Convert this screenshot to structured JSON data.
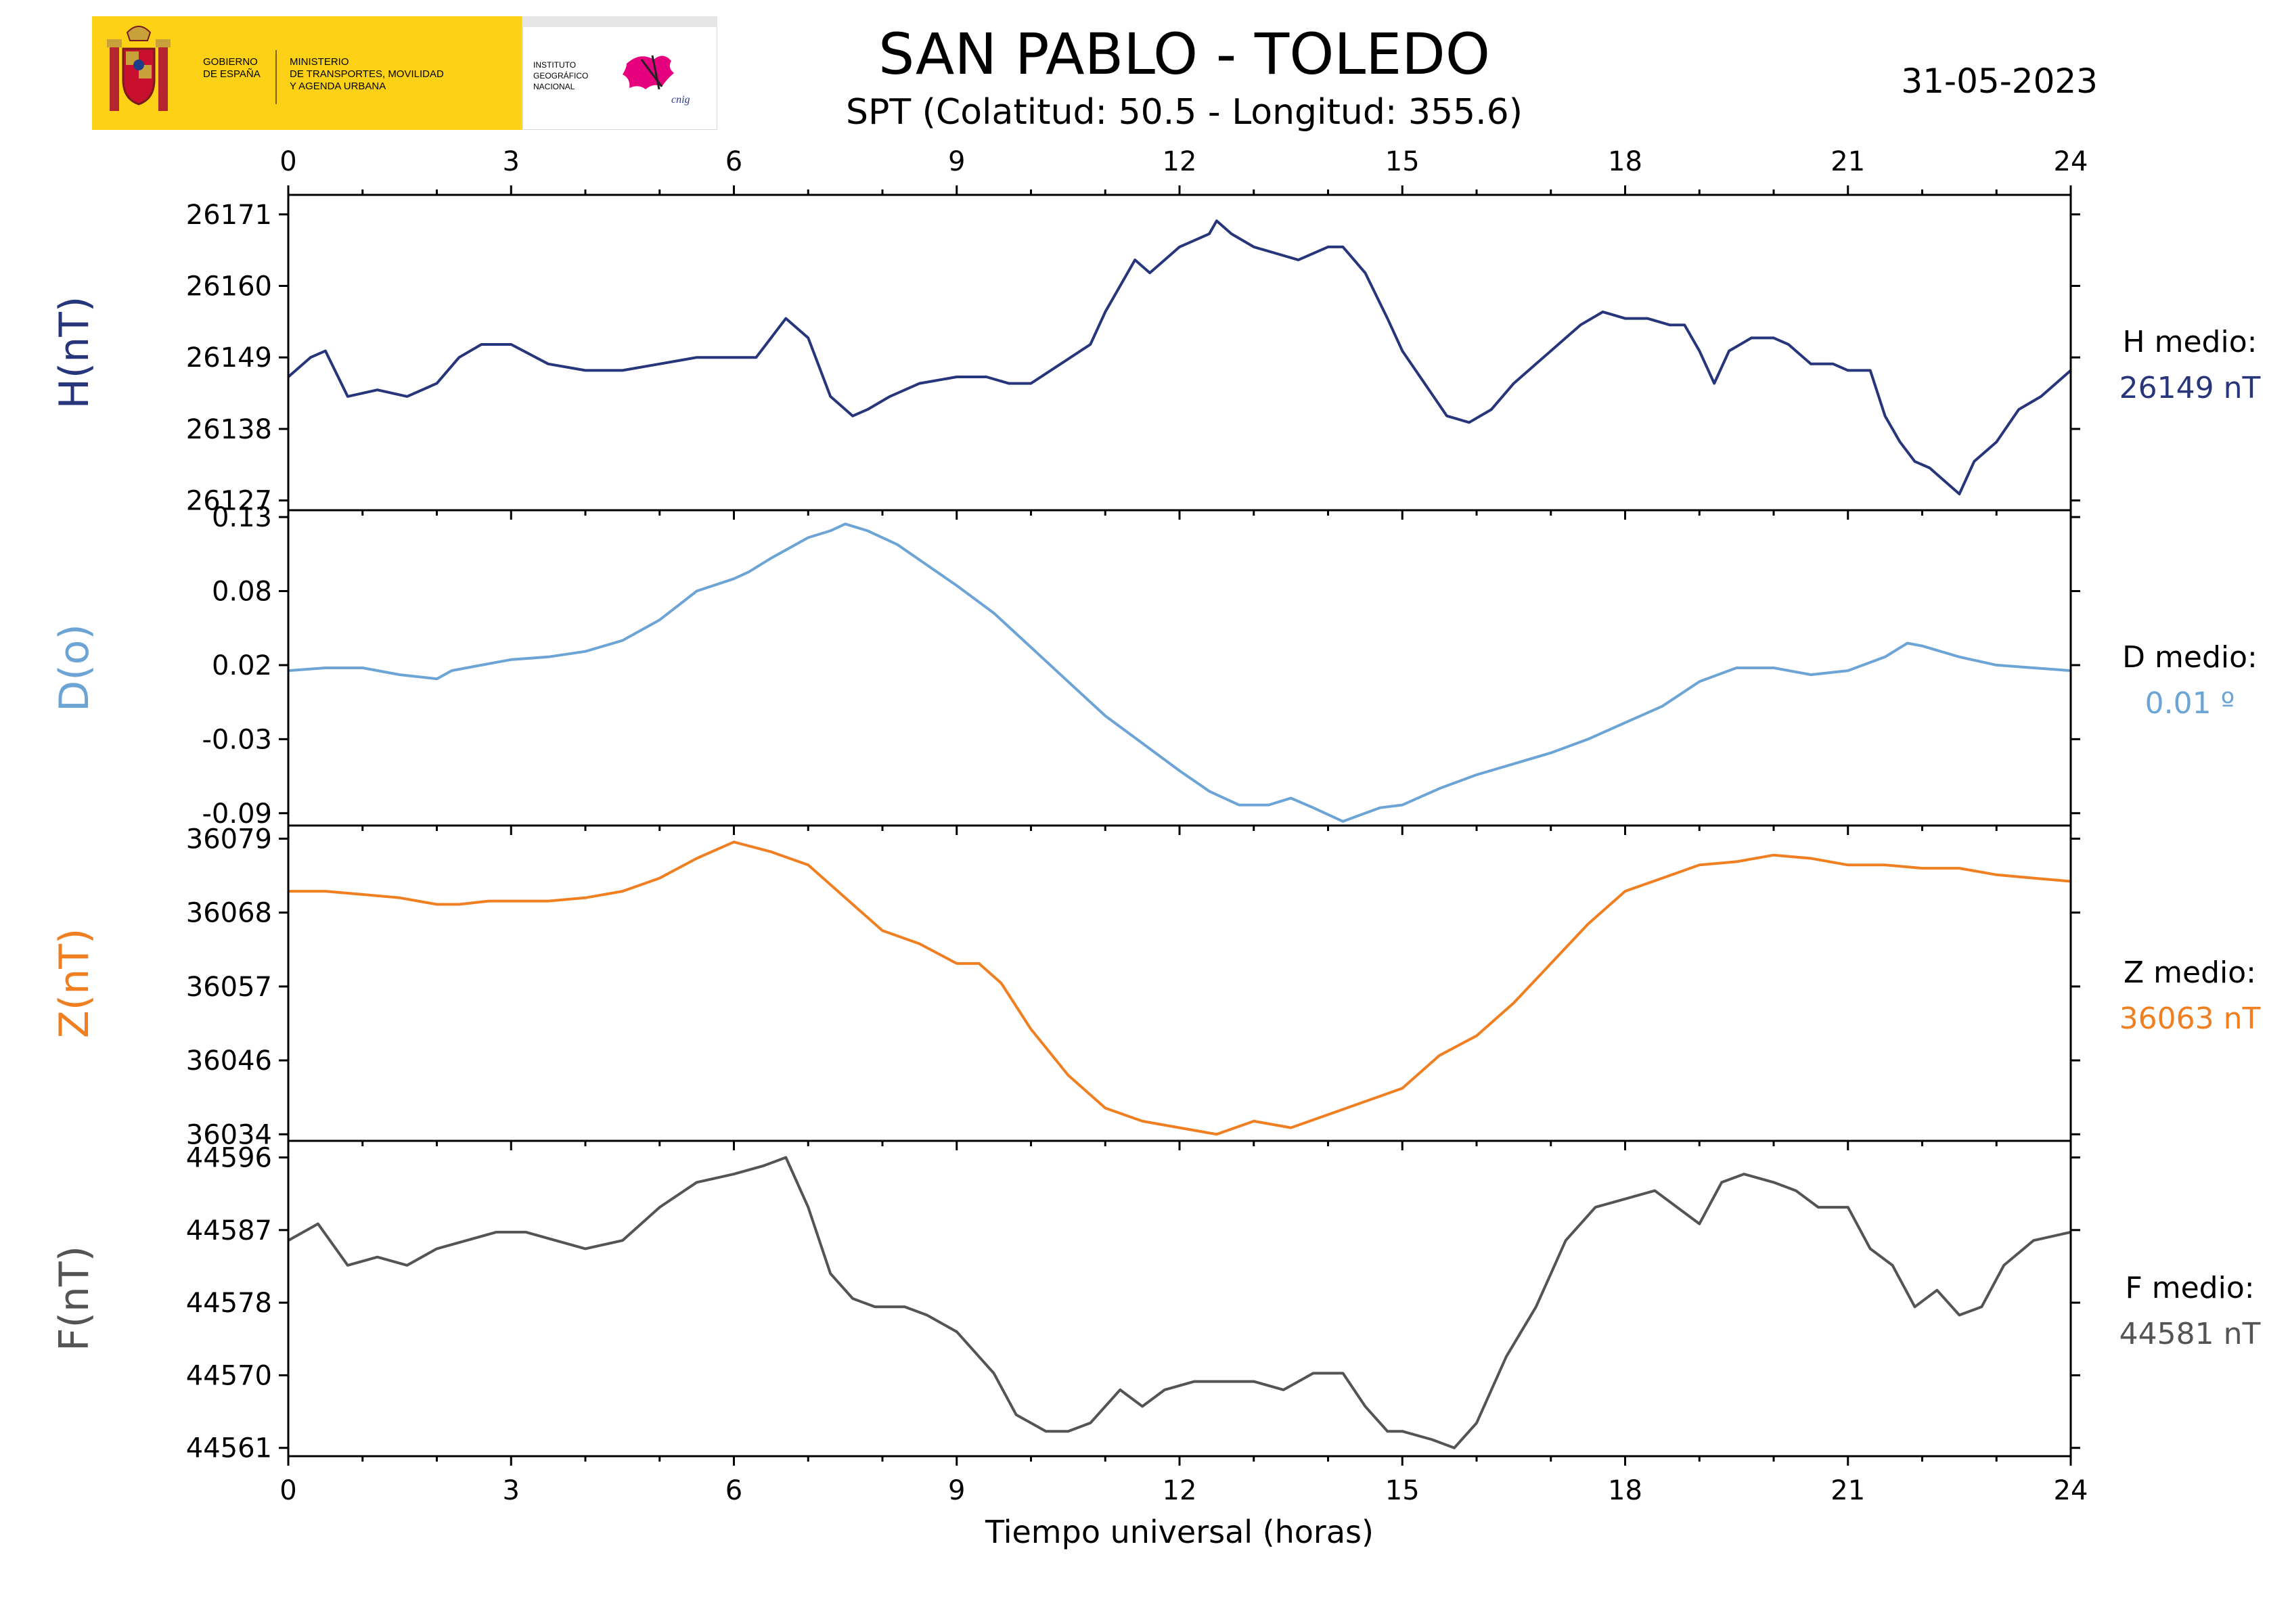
{
  "header": {
    "title": "SAN PABLO - TOLEDO",
    "subtitle": "SPT (Colatitud: 50.5 - Longitud: 355.6)",
    "date": "31-05-2023",
    "logo": {
      "gov_line1": "GOBIERNO",
      "gov_line2": "DE ESPAÑA",
      "min_line1": "MINISTERIO",
      "min_line2": "DE TRANSPORTES, MOVILIDAD",
      "min_line3": "Y AGENDA URBANA",
      "ign_line1": "INSTITUTO",
      "ign_line2": "GEOGRÁFICO",
      "ign_line3": "NACIONAL",
      "cnig": "cnig",
      "gov_color": "#fcd116",
      "brand_pink": "#e5007e"
    }
  },
  "chart_data": {
    "type": "line",
    "xlabel": "Tiempo universal (horas)",
    "xlim": [
      0,
      24
    ],
    "xticks": [
      0,
      3,
      6,
      9,
      12,
      15,
      18,
      21,
      24
    ],
    "grid": false,
    "panels": [
      {
        "id": "H",
        "ylabel": "H(nT)",
        "color": "#27357a",
        "ylim": [
          26125.5,
          26174
        ],
        "yticks": [
          26127,
          26138,
          26149,
          26160,
          26171
        ],
        "ytick_labels": [
          "26127",
          "26138",
          "26149",
          "26160",
          "26171"
        ],
        "medio_label": "H medio:",
        "medio_value": "26149 nT",
        "x": [
          0,
          0.3,
          0.5,
          0.8,
          1.2,
          1.6,
          2.0,
          2.3,
          2.6,
          3.0,
          3.5,
          4.0,
          4.5,
          5.0,
          5.5,
          6.0,
          6.3,
          6.7,
          7.0,
          7.3,
          7.6,
          7.8,
          8.1,
          8.5,
          9.0,
          9.4,
          9.7,
          10.0,
          10.4,
          10.8,
          11.0,
          11.4,
          11.6,
          11.8,
          12.0,
          12.2,
          12.4,
          12.5,
          12.7,
          13.0,
          13.3,
          13.6,
          14.0,
          14.2,
          14.5,
          14.8,
          15.0,
          15.3,
          15.6,
          15.9,
          16.2,
          16.5,
          16.8,
          17.1,
          17.4,
          17.7,
          18.0,
          18.3,
          18.6,
          18.8,
          19.0,
          19.2,
          19.4,
          19.7,
          20.0,
          20.2,
          20.5,
          20.8,
          21.0,
          21.3,
          21.5,
          21.7,
          21.9,
          22.1,
          22.3,
          22.5,
          22.7,
          23.0,
          23.3,
          23.6,
          24.0
        ],
        "y": [
          26146,
          26149,
          26150,
          26143,
          26144,
          26143,
          26145,
          26149,
          26151,
          26151,
          26148,
          26147,
          26147,
          26148,
          26149,
          26149,
          26149,
          26155,
          26152,
          26143,
          26140,
          26141,
          26143,
          26145,
          26146,
          26146,
          26145,
          26145,
          26148,
          26151,
          26156,
          26164,
          26162,
          26164,
          26166,
          26167,
          26168,
          26170,
          26168,
          26166,
          26165,
          26164,
          26166,
          26166,
          26162,
          26155,
          26150,
          26145,
          26140,
          26139,
          26141,
          26145,
          26148,
          26151,
          26154,
          26156,
          26155,
          26155,
          26154,
          26154,
          26150,
          26145,
          26150,
          26152,
          26152,
          26151,
          26148,
          26148,
          26147,
          26147,
          26140,
          26136,
          26133,
          26132,
          26130,
          26128,
          26133,
          26136,
          26141,
          26143,
          26147
        ]
      },
      {
        "id": "D",
        "ylabel": "D(o)",
        "color": "#6ba4d5",
        "ylim": [
          -0.095,
          0.135
        ],
        "yticks": [
          -0.086,
          -0.032,
          0.022,
          0.076,
          0.13
        ],
        "ytick_labels": [
          "-0.09",
          "-0.03",
          "0.02",
          "0.08",
          "0.13"
        ],
        "medio_label": "D medio:",
        "medio_value": "0.01 º",
        "x": [
          0,
          0.5,
          1.0,
          1.5,
          2.0,
          2.2,
          2.6,
          3.0,
          3.5,
          4.0,
          4.5,
          5.0,
          5.5,
          6.0,
          6.2,
          6.5,
          7.0,
          7.3,
          7.5,
          7.8,
          8.2,
          8.6,
          9.0,
          9.5,
          10.0,
          10.5,
          11.0,
          11.5,
          12.0,
          12.4,
          12.8,
          13.2,
          13.5,
          13.8,
          14.2,
          14.4,
          14.7,
          15.0,
          15.5,
          16.0,
          16.5,
          17.0,
          17.5,
          18.0,
          18.5,
          19.0,
          19.5,
          20.0,
          20.5,
          21.0,
          21.5,
          21.8,
          22.0,
          22.5,
          23.0,
          23.5,
          24.0
        ],
        "y": [
          0.018,
          0.02,
          0.02,
          0.015,
          0.012,
          0.018,
          0.022,
          0.026,
          0.028,
          0.032,
          0.04,
          0.055,
          0.076,
          0.085,
          0.09,
          0.1,
          0.115,
          0.12,
          0.125,
          0.12,
          0.11,
          0.095,
          0.08,
          0.06,
          0.035,
          0.01,
          -0.015,
          -0.035,
          -0.055,
          -0.07,
          -0.08,
          -0.08,
          -0.075,
          -0.082,
          -0.092,
          -0.088,
          -0.082,
          -0.08,
          -0.068,
          -0.058,
          -0.05,
          -0.042,
          -0.032,
          -0.02,
          -0.008,
          0.01,
          0.02,
          0.02,
          0.015,
          0.018,
          0.028,
          0.038,
          0.036,
          0.028,
          0.022,
          0.02,
          0.018
        ]
      },
      {
        "id": "Z",
        "ylabel": "Z(nT)",
        "color": "#f07f22",
        "ylim": [
          36033,
          36081
        ],
        "yticks": [
          36034,
          36045.25,
          36056.5,
          36067.75,
          36079
        ],
        "ytick_labels": [
          "36034",
          "36046",
          "36057",
          "36068",
          "36079"
        ],
        "medio_label": "Z medio:",
        "medio_value": "36063 nT",
        "x": [
          0,
          0.5,
          1.0,
          1.5,
          2.0,
          2.3,
          2.7,
          3.0,
          3.5,
          4.0,
          4.5,
          5.0,
          5.5,
          6.0,
          6.5,
          7.0,
          7.5,
          8.0,
          8.5,
          9.0,
          9.3,
          9.6,
          10.0,
          10.5,
          11.0,
          11.5,
          12.0,
          12.5,
          13.0,
          13.5,
          14.0,
          14.5,
          15.0,
          15.5,
          16.0,
          16.5,
          17.0,
          17.5,
          18.0,
          18.5,
          19.0,
          19.5,
          20.0,
          20.5,
          21.0,
          21.5,
          22.0,
          22.5,
          23.0,
          23.5,
          24.0
        ],
        "y": [
          36071,
          36071,
          36070.5,
          36070,
          36069,
          36069,
          36069.5,
          36069.5,
          36069.5,
          36070,
          36071,
          36073,
          36076,
          36078.5,
          36077,
          36075,
          36070,
          36065,
          36063,
          36060,
          36060,
          36057,
          36050,
          36043,
          36038,
          36036,
          36035,
          36034,
          36036,
          36035,
          36037,
          36039,
          36041,
          36046,
          36049,
          36054,
          36060,
          36066,
          36071,
          36073,
          36075,
          36075.5,
          36076.5,
          36076,
          36075,
          36075,
          36074.5,
          36074.5,
          36073.5,
          36073,
          36072.5
        ]
      },
      {
        "id": "F",
        "ylabel": "F(nT)",
        "color": "#545454",
        "ylim": [
          44560,
          44598
        ],
        "yticks": [
          44561,
          44569.75,
          44578.5,
          44587.25,
          44596
        ],
        "ytick_labels": [
          "44561",
          "44570",
          "44578",
          "44587",
          "44596"
        ],
        "medio_label": "F medio:",
        "medio_value": "44581 nT",
        "x": [
          0,
          0.4,
          0.8,
          1.2,
          1.6,
          2.0,
          2.4,
          2.8,
          3.2,
          3.6,
          4.0,
          4.5,
          5.0,
          5.5,
          6.0,
          6.4,
          6.7,
          7.0,
          7.3,
          7.6,
          7.9,
          8.3,
          8.6,
          9.0,
          9.5,
          9.8,
          10.2,
          10.5,
          10.8,
          11.2,
          11.5,
          11.8,
          12.2,
          12.6,
          13.0,
          13.4,
          13.8,
          14.2,
          14.5,
          14.8,
          15.0,
          15.4,
          15.7,
          16.0,
          16.4,
          16.8,
          17.2,
          17.6,
          18.0,
          18.4,
          18.7,
          19.0,
          19.3,
          19.6,
          20.0,
          20.3,
          20.6,
          21.0,
          21.3,
          21.6,
          21.9,
          22.2,
          22.5,
          22.8,
          23.1,
          23.5,
          24.0
        ],
        "y": [
          44586,
          44588,
          44583,
          44584,
          44583,
          44585,
          44586,
          44587,
          44587,
          44586,
          44585,
          44586,
          44590,
          44593,
          44594,
          44595,
          44596,
          44590,
          44582,
          44579,
          44578,
          44578,
          44577,
          44575,
          44570,
          44565,
          44563,
          44563,
          44564,
          44568,
          44566,
          44568,
          44569,
          44569,
          44569,
          44568,
          44570,
          44570,
          44566,
          44563,
          44563,
          44562,
          44561,
          44564,
          44572,
          44578,
          44586,
          44590,
          44591,
          44592,
          44590,
          44588,
          44593,
          44594,
          44593,
          44592,
          44590,
          44590,
          44585,
          44583,
          44578,
          44580,
          44577,
          44578,
          44583,
          44586,
          44587
        ]
      }
    ]
  }
}
